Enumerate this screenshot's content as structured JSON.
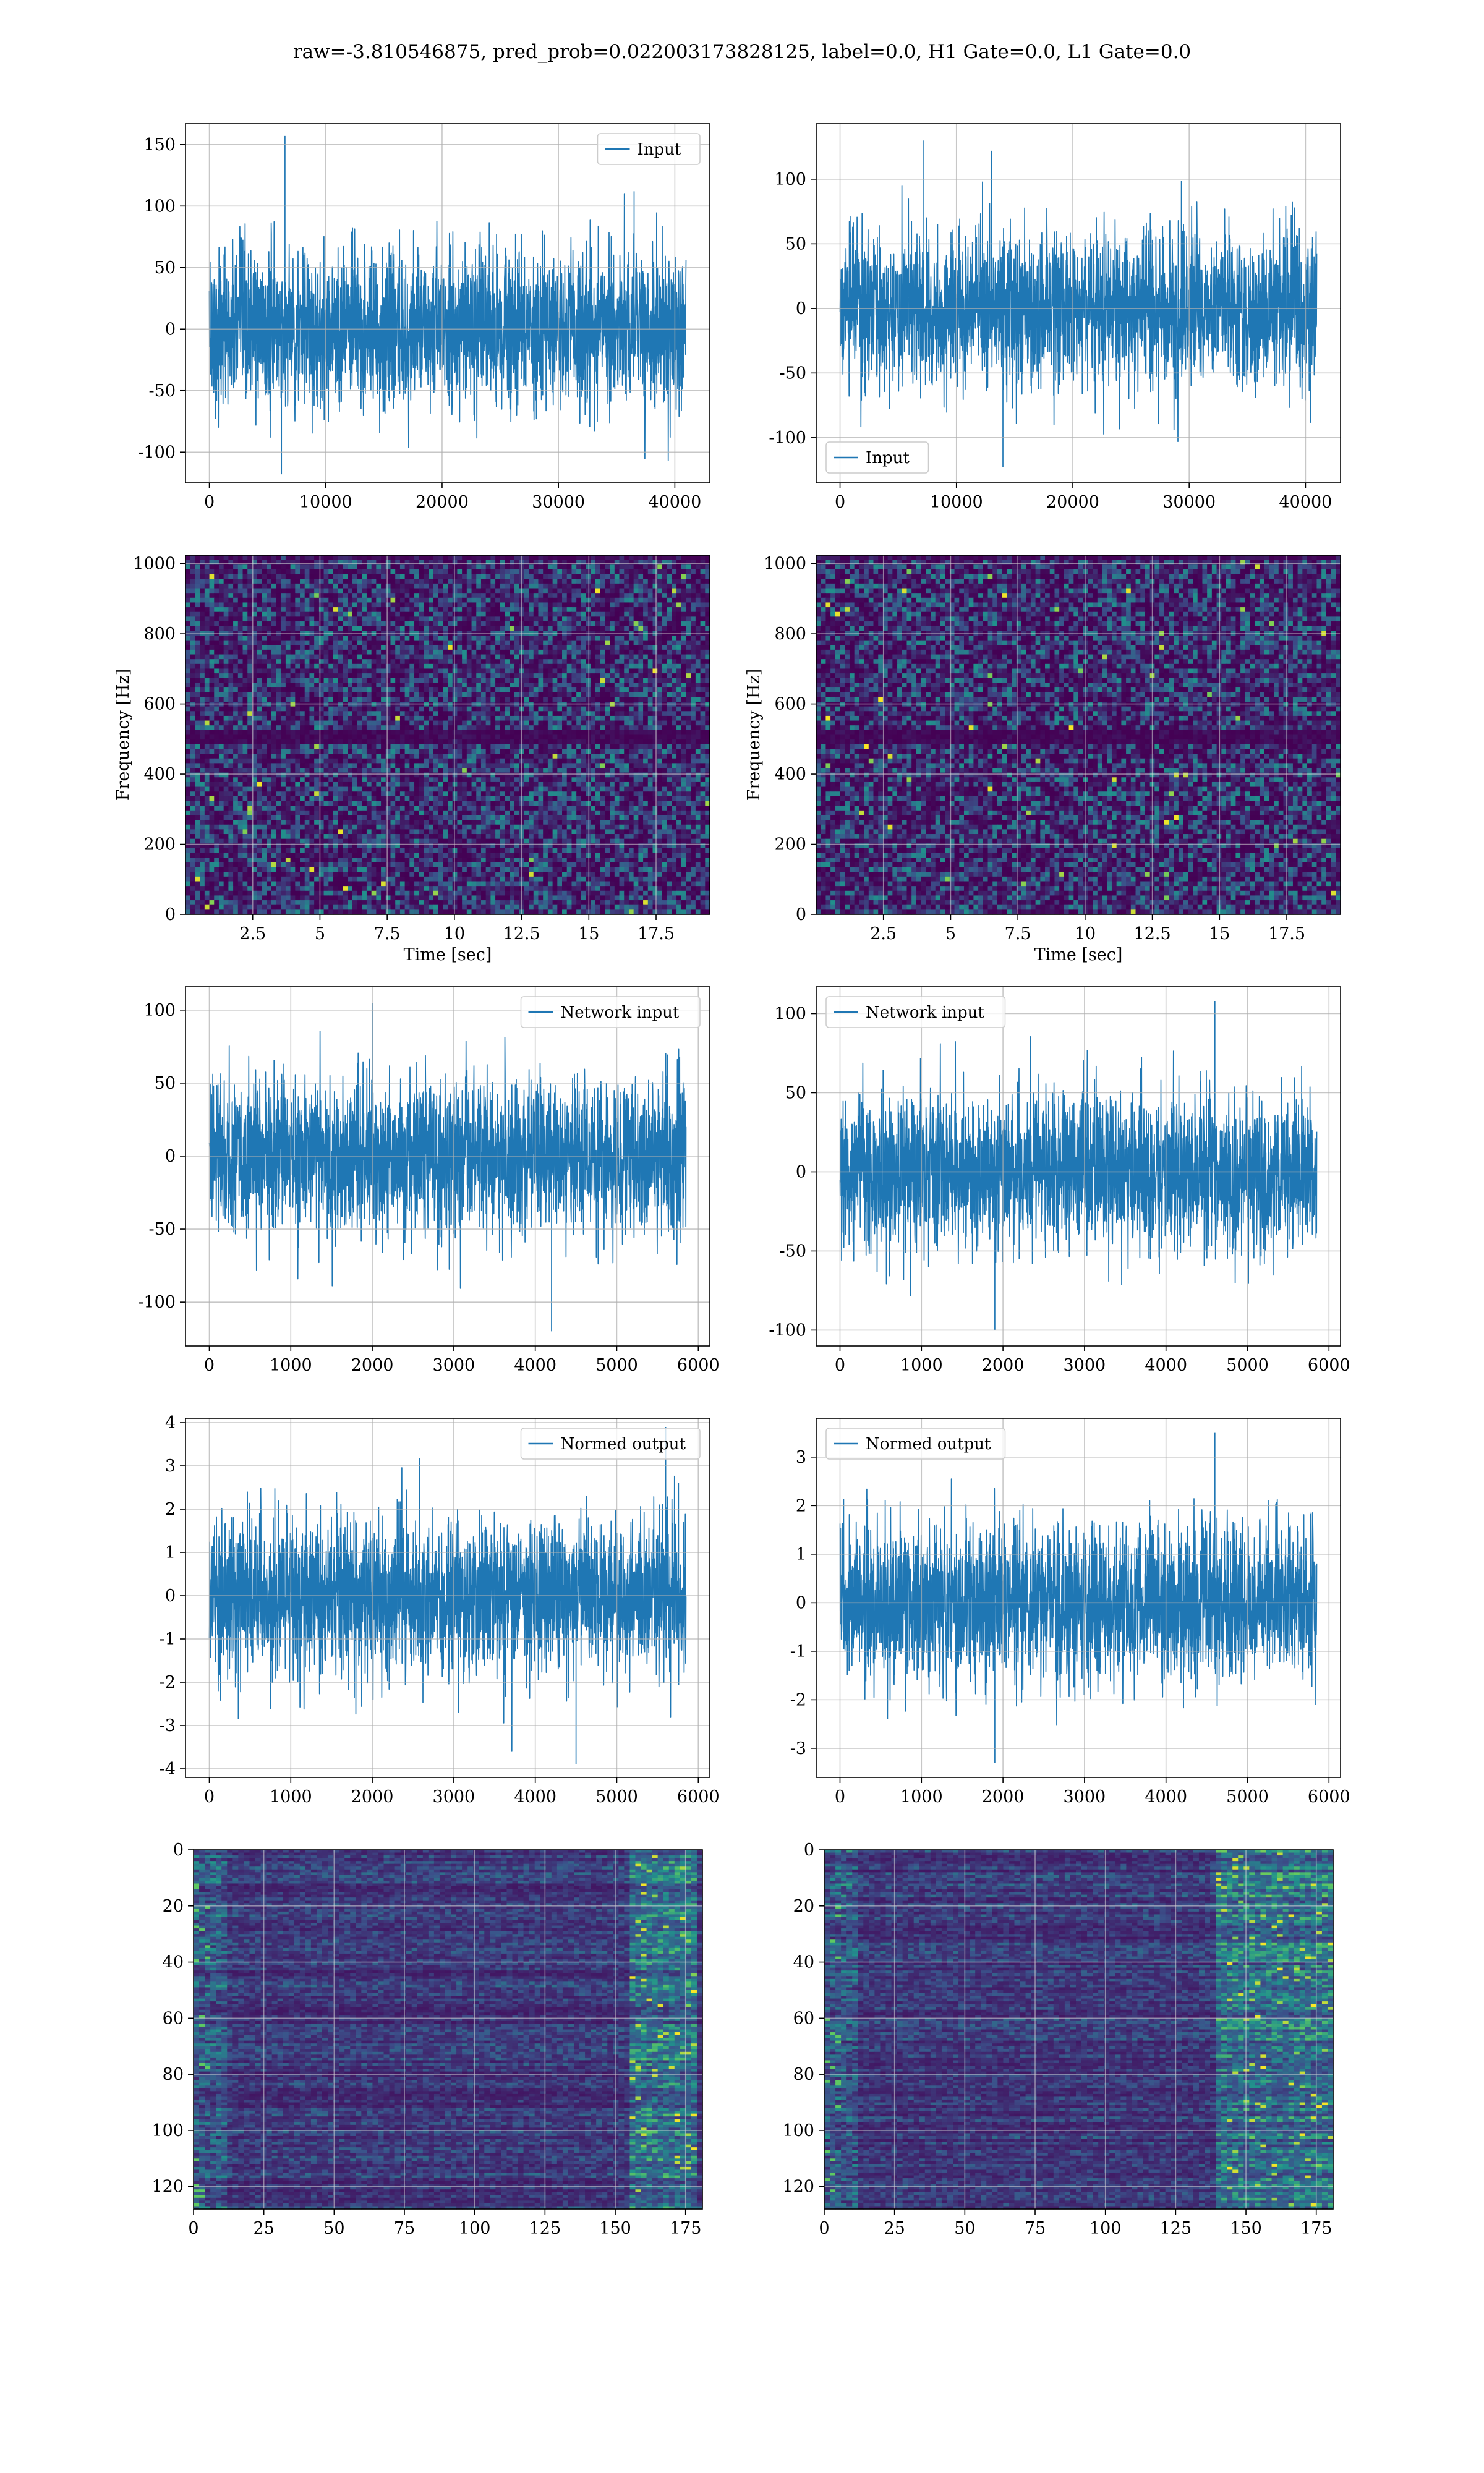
{
  "figure": {
    "title": "raw=-3.810546875, pred_prob=0.022003173828125, label=0.0, H1 Gate=0.0, L1 Gate=0.0",
    "line_color": "#1f77b4"
  },
  "chart_data": [
    {
      "id": "input-h1",
      "type": "line",
      "series": [
        {
          "name": "Input",
          "n_samples": 40960,
          "y_range": [
            -118,
            157
          ],
          "spikes": [
            [
              6500,
              157
            ],
            [
              36500,
              112
            ],
            [
              6200,
              -118
            ]
          ]
        }
      ],
      "xlim": [
        -2048,
        43008
      ],
      "ylim": [
        -125,
        167
      ],
      "xticks": [
        0,
        10000,
        20000,
        30000,
        40000
      ],
      "yticks": [
        -100,
        -50,
        0,
        50,
        100,
        150
      ],
      "legend": "upper right",
      "grid": true
    },
    {
      "id": "input-l1",
      "type": "line",
      "series": [
        {
          "name": "Input",
          "n_samples": 40960,
          "y_range": [
            -123,
            130
          ],
          "spikes": [
            [
              7200,
              130
            ],
            [
              13000,
              122
            ],
            [
              14000,
              -123
            ]
          ]
        }
      ],
      "xlim": [
        -2048,
        43008
      ],
      "ylim": [
        -135,
        143
      ],
      "xticks": [
        0,
        10000,
        20000,
        30000,
        40000
      ],
      "yticks": [
        -100,
        -50,
        0,
        50,
        100
      ],
      "legend": "lower left",
      "grid": true
    },
    {
      "id": "spectrogram-h1",
      "type": "heatmap",
      "colormap": "viridis",
      "xlabel": "Time [sec]",
      "ylabel": "Frequency [Hz]",
      "xlim": [
        0,
        19.5
      ],
      "ylim": [
        0,
        1024
      ],
      "xticks": [
        2.5,
        5.0,
        7.5,
        10.0,
        12.5,
        15.0,
        17.5
      ],
      "yticks": [
        0,
        200,
        400,
        600,
        800,
        1000
      ],
      "dark_band_hz": [
        495,
        515
      ],
      "grid": true
    },
    {
      "id": "spectrogram-l1",
      "type": "heatmap",
      "colormap": "viridis",
      "xlabel": "Time [sec]",
      "ylabel": "Frequency [Hz]",
      "xlim": [
        0,
        19.5
      ],
      "ylim": [
        0,
        1024
      ],
      "xticks": [
        2.5,
        5.0,
        7.5,
        10.0,
        12.5,
        15.0,
        17.5
      ],
      "yticks": [
        0,
        200,
        400,
        600,
        800,
        1000
      ],
      "dark_band_hz": [
        495,
        515
      ],
      "grid": true
    },
    {
      "id": "network-input-h1",
      "type": "line",
      "series": [
        {
          "name": "Network input",
          "n_samples": 5850,
          "y_range": [
            -120,
            105
          ],
          "spikes": [
            [
              2000,
              105
            ],
            [
              4200,
              -120
            ]
          ]
        }
      ],
      "xlim": [
        -292,
        6142
      ],
      "ylim": [
        -130,
        116
      ],
      "xticks": [
        0,
        1000,
        2000,
        3000,
        4000,
        5000,
        6000
      ],
      "yticks": [
        -100,
        -50,
        0,
        50,
        100
      ],
      "legend": "upper right",
      "grid": true
    },
    {
      "id": "network-input-l1",
      "type": "line",
      "series": [
        {
          "name": "Network input",
          "n_samples": 5850,
          "y_range": [
            -100,
            108
          ],
          "spikes": [
            [
              4600,
              108
            ],
            [
              1900,
              -100
            ]
          ]
        }
      ],
      "xlim": [
        -292,
        6142
      ],
      "ylim": [
        -110,
        117
      ],
      "xticks": [
        0,
        1000,
        2000,
        3000,
        4000,
        5000,
        6000
      ],
      "yticks": [
        -100,
        -50,
        0,
        50,
        100
      ],
      "legend": "upper left",
      "grid": true
    },
    {
      "id": "normed-output-h1",
      "type": "line",
      "series": [
        {
          "name": "Normed output",
          "n_samples": 5850,
          "y_range": [
            -3.9,
            3.9
          ],
          "spikes": [
            [
              5600,
              3.9
            ],
            [
              4500,
              -3.9
            ]
          ]
        }
      ],
      "xlim": [
        -292,
        6142
      ],
      "ylim": [
        -4.2,
        4.1
      ],
      "xticks": [
        0,
        1000,
        2000,
        3000,
        4000,
        5000,
        6000
      ],
      "yticks": [
        -4,
        -3,
        -2,
        -1,
        0,
        1,
        2,
        3,
        4
      ],
      "legend": "upper right",
      "grid": true
    },
    {
      "id": "normed-output-l1",
      "type": "line",
      "series": [
        {
          "name": "Normed output",
          "n_samples": 5850,
          "y_range": [
            -3.3,
            3.5
          ],
          "spikes": [
            [
              4600,
              3.5
            ],
            [
              1900,
              -3.3
            ]
          ]
        }
      ],
      "xlim": [
        -292,
        6142
      ],
      "ylim": [
        -3.6,
        3.8
      ],
      "xticks": [
        0,
        1000,
        2000,
        3000,
        4000,
        5000,
        6000
      ],
      "yticks": [
        -3,
        -2,
        -1,
        0,
        1,
        2,
        3
      ],
      "legend": "upper left",
      "grid": true
    },
    {
      "id": "qtransform-h1",
      "type": "heatmap",
      "colormap": "viridis",
      "rows": 128,
      "cols": 181,
      "xlim": [
        0,
        181
      ],
      "ylim": [
        128,
        0
      ],
      "xticks": [
        0,
        25,
        50,
        75,
        100,
        125,
        150,
        175
      ],
      "yticks": [
        0,
        20,
        40,
        60,
        80,
        100,
        120
      ],
      "bright_columns": [
        [
          155,
          180
        ]
      ],
      "grid": true
    },
    {
      "id": "qtransform-l1",
      "type": "heatmap",
      "colormap": "viridis",
      "rows": 128,
      "cols": 181,
      "xlim": [
        0,
        181
      ],
      "ylim": [
        128,
        0
      ],
      "xticks": [
        0,
        25,
        50,
        75,
        100,
        125,
        150,
        175
      ],
      "yticks": [
        0,
        20,
        40,
        60,
        80,
        100,
        120
      ],
      "bright_columns": [
        [
          140,
          181
        ]
      ],
      "grid": true
    }
  ]
}
